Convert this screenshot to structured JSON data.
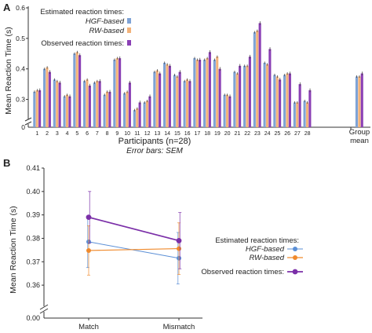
{
  "panel_a": {
    "label": "A",
    "legend_estimated_title": "Estimated reaction times:",
    "legend_hgf": "HGF-based",
    "legend_rw": "RW-based",
    "legend_observed_title": "Observed reaction times:",
    "error_note": "Error bars: SEM",
    "group_label_1": "Group",
    "group_label_2": "mean"
  },
  "panel_b": {
    "label": "B",
    "legend_estimated_title": "Estimated reaction times:",
    "legend_hgf": "HGF-based",
    "legend_rw": "RW-based",
    "legend_observed_title": "Observed reaction times:"
  },
  "colors": {
    "hgf": "#7fa3d6",
    "rw": "#f2b27a",
    "observed": "#8a3fb5",
    "hgf_line": "#5b8fd6",
    "rw_line": "#f08a2c",
    "observed_line": "#7b2fa8"
  },
  "chart_data": [
    {
      "type": "bar",
      "xlabel": "Participants (n=28)",
      "ylabel": "Mean Reaction Time (s)",
      "ylim": [
        0,
        0.6
      ],
      "axis_break": true,
      "yticks": [
        "0",
        "0.1",
        "0.2",
        "0.3",
        "0.4",
        "0.5",
        "0.6"
      ],
      "categories": [
        "1",
        "2",
        "3",
        "4",
        "5",
        "6",
        "7",
        "8",
        "9",
        "10",
        "11",
        "12",
        "13",
        "14",
        "15",
        "16",
        "17",
        "18",
        "19",
        "20",
        "21",
        "22",
        "23",
        "24",
        "25",
        "26",
        "27",
        "28"
      ],
      "group_category": "Group mean",
      "series": [
        {
          "name": "HGF-based",
          "values": [
            0.325,
            0.4,
            0.365,
            0.31,
            0.45,
            0.36,
            0.355,
            0.315,
            0.43,
            0.32,
            0.265,
            0.29,
            0.39,
            0.42,
            0.38,
            0.36,
            0.435,
            0.43,
            0.43,
            0.315,
            0.39,
            0.41,
            0.52,
            0.42,
            0.38,
            0.38,
            0.29,
            0.295
          ],
          "group": 0.375
        },
        {
          "name": "RW-based",
          "values": [
            0.33,
            0.405,
            0.36,
            0.315,
            0.455,
            0.365,
            0.36,
            0.325,
            0.435,
            0.325,
            0.27,
            0.295,
            0.395,
            0.415,
            0.375,
            0.365,
            0.43,
            0.435,
            0.44,
            0.315,
            0.385,
            0.41,
            0.525,
            0.415,
            0.375,
            0.385,
            0.29,
            0.29
          ],
          "group": 0.375
        },
        {
          "name": "Observed",
          "values": [
            0.33,
            0.39,
            0.355,
            0.31,
            0.445,
            0.345,
            0.36,
            0.325,
            0.435,
            0.355,
            0.29,
            0.31,
            0.385,
            0.41,
            0.39,
            0.36,
            0.43,
            0.455,
            0.4,
            0.31,
            0.41,
            0.44,
            0.55,
            0.465,
            0.365,
            0.385,
            0.35,
            0.33
          ],
          "group": 0.385
        }
      ]
    },
    {
      "type": "line",
      "xlabel": "",
      "ylabel": "Mean Reaction Time (s)",
      "categories": [
        "Match",
        "Mismatch"
      ],
      "ylim": [
        0.355,
        0.41
      ],
      "yticks": [
        "0.36",
        "0.37",
        "0.38",
        "0.39",
        "0.40",
        "0.41"
      ],
      "ybreak_tick": "0.00",
      "axis_break": true,
      "series": [
        {
          "name": "HGF-based",
          "values": [
            0.3785,
            0.3715
          ],
          "err": [
            0.011,
            0.011
          ]
        },
        {
          "name": "RW-based",
          "values": [
            0.3748,
            0.3756
          ],
          "err": [
            0.0105,
            0.011
          ]
        },
        {
          "name": "Observed",
          "values": [
            0.389,
            0.379
          ],
          "err": [
            0.011,
            0.012
          ]
        }
      ]
    }
  ]
}
